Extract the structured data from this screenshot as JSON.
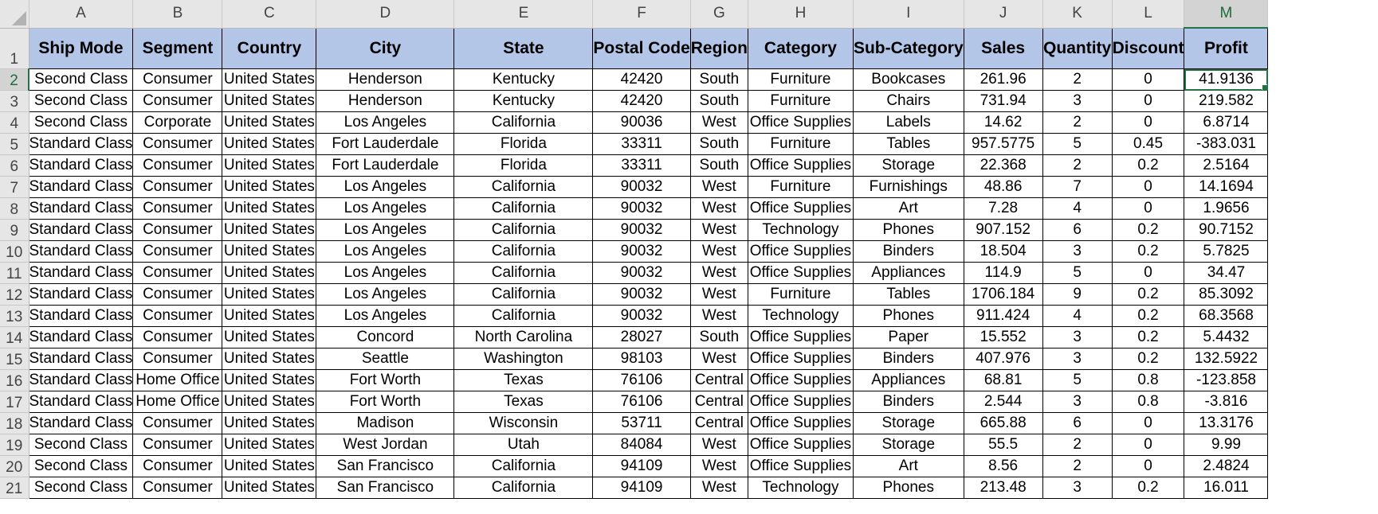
{
  "app": {
    "name": "Spreadsheet",
    "selected_cell": "M2",
    "accent_color": "#217346",
    "header_fill_color": "#b4c6e7"
  },
  "columns": [
    "A",
    "B",
    "C",
    "D",
    "E",
    "F",
    "G",
    "H",
    "I",
    "J",
    "K",
    "L",
    "M"
  ],
  "header_row": {
    "row_number": "1",
    "cells": [
      "Ship Mode",
      "Segment",
      "Country",
      "City",
      "State",
      "Postal Code",
      "Region",
      "Category",
      "Sub-Category",
      "Sales",
      "Quantity",
      "Discount",
      "Profit"
    ]
  },
  "rows": [
    {
      "num": "2",
      "cells": [
        "Second Class",
        "Consumer",
        "United States",
        "Henderson",
        "Kentucky",
        "42420",
        "South",
        "Furniture",
        "Bookcases",
        "261.96",
        "2",
        "0",
        "41.9136"
      ]
    },
    {
      "num": "3",
      "cells": [
        "Second Class",
        "Consumer",
        "United States",
        "Henderson",
        "Kentucky",
        "42420",
        "South",
        "Furniture",
        "Chairs",
        "731.94",
        "3",
        "0",
        "219.582"
      ]
    },
    {
      "num": "4",
      "cells": [
        "Second Class",
        "Corporate",
        "United States",
        "Los Angeles",
        "California",
        "90036",
        "West",
        "Office Supplies",
        "Labels",
        "14.62",
        "2",
        "0",
        "6.8714"
      ]
    },
    {
      "num": "5",
      "cells": [
        "Standard Class",
        "Consumer",
        "United States",
        "Fort Lauderdale",
        "Florida",
        "33311",
        "South",
        "Furniture",
        "Tables",
        "957.5775",
        "5",
        "0.45",
        "-383.031"
      ]
    },
    {
      "num": "6",
      "cells": [
        "Standard Class",
        "Consumer",
        "United States",
        "Fort Lauderdale",
        "Florida",
        "33311",
        "South",
        "Office Supplies",
        "Storage",
        "22.368",
        "2",
        "0.2",
        "2.5164"
      ]
    },
    {
      "num": "7",
      "cells": [
        "Standard Class",
        "Consumer",
        "United States",
        "Los Angeles",
        "California",
        "90032",
        "West",
        "Furniture",
        "Furnishings",
        "48.86",
        "7",
        "0",
        "14.1694"
      ]
    },
    {
      "num": "8",
      "cells": [
        "Standard Class",
        "Consumer",
        "United States",
        "Los Angeles",
        "California",
        "90032",
        "West",
        "Office Supplies",
        "Art",
        "7.28",
        "4",
        "0",
        "1.9656"
      ]
    },
    {
      "num": "9",
      "cells": [
        "Standard Class",
        "Consumer",
        "United States",
        "Los Angeles",
        "California",
        "90032",
        "West",
        "Technology",
        "Phones",
        "907.152",
        "6",
        "0.2",
        "90.7152"
      ]
    },
    {
      "num": "10",
      "cells": [
        "Standard Class",
        "Consumer",
        "United States",
        "Los Angeles",
        "California",
        "90032",
        "West",
        "Office Supplies",
        "Binders",
        "18.504",
        "3",
        "0.2",
        "5.7825"
      ]
    },
    {
      "num": "11",
      "cells": [
        "Standard Class",
        "Consumer",
        "United States",
        "Los Angeles",
        "California",
        "90032",
        "West",
        "Office Supplies",
        "Appliances",
        "114.9",
        "5",
        "0",
        "34.47"
      ]
    },
    {
      "num": "12",
      "cells": [
        "Standard Class",
        "Consumer",
        "United States",
        "Los Angeles",
        "California",
        "90032",
        "West",
        "Furniture",
        "Tables",
        "1706.184",
        "9",
        "0.2",
        "85.3092"
      ]
    },
    {
      "num": "13",
      "cells": [
        "Standard Class",
        "Consumer",
        "United States",
        "Los Angeles",
        "California",
        "90032",
        "West",
        "Technology",
        "Phones",
        "911.424",
        "4",
        "0.2",
        "68.3568"
      ]
    },
    {
      "num": "14",
      "cells": [
        "Standard Class",
        "Consumer",
        "United States",
        "Concord",
        "North Carolina",
        "28027",
        "South",
        "Office Supplies",
        "Paper",
        "15.552",
        "3",
        "0.2",
        "5.4432"
      ]
    },
    {
      "num": "15",
      "cells": [
        "Standard Class",
        "Consumer",
        "United States",
        "Seattle",
        "Washington",
        "98103",
        "West",
        "Office Supplies",
        "Binders",
        "407.976",
        "3",
        "0.2",
        "132.5922"
      ]
    },
    {
      "num": "16",
      "cells": [
        "Standard Class",
        "Home Office",
        "United States",
        "Fort Worth",
        "Texas",
        "76106",
        "Central",
        "Office Supplies",
        "Appliances",
        "68.81",
        "5",
        "0.8",
        "-123.858"
      ]
    },
    {
      "num": "17",
      "cells": [
        "Standard Class",
        "Home Office",
        "United States",
        "Fort Worth",
        "Texas",
        "76106",
        "Central",
        "Office Supplies",
        "Binders",
        "2.544",
        "3",
        "0.8",
        "-3.816"
      ]
    },
    {
      "num": "18",
      "cells": [
        "Standard Class",
        "Consumer",
        "United States",
        "Madison",
        "Wisconsin",
        "53711",
        "Central",
        "Office Supplies",
        "Storage",
        "665.88",
        "6",
        "0",
        "13.3176"
      ]
    },
    {
      "num": "19",
      "cells": [
        "Second Class",
        "Consumer",
        "United States",
        "West Jordan",
        "Utah",
        "84084",
        "West",
        "Office Supplies",
        "Storage",
        "55.5",
        "2",
        "0",
        "9.99"
      ]
    },
    {
      "num": "20",
      "cells": [
        "Second Class",
        "Consumer",
        "United States",
        "San Francisco",
        "California",
        "94109",
        "West",
        "Office Supplies",
        "Art",
        "8.56",
        "2",
        "0",
        "2.4824"
      ]
    },
    {
      "num": "21",
      "cells": [
        "Second Class",
        "Consumer",
        "United States",
        "San Francisco",
        "California",
        "94109",
        "West",
        "Technology",
        "Phones",
        "213.48",
        "3",
        "0.2",
        "16.011"
      ]
    }
  ]
}
